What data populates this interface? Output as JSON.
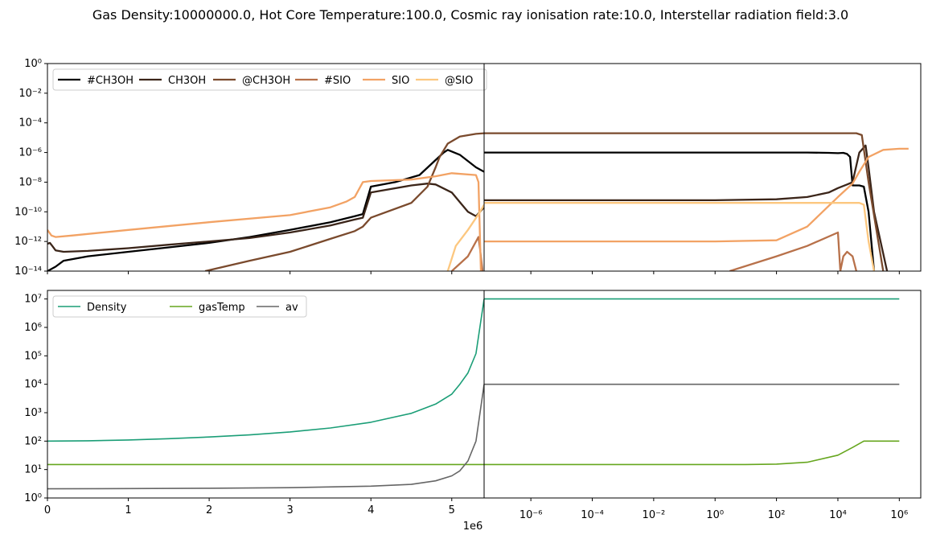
{
  "title": "Gas Density:10000000.0, Hot Core Temperature:100.0, Cosmic ray ionisation rate:10.0, Interstellar radiation field:3.0",
  "chart_data": [
    {
      "type": "line",
      "panel": "top-left",
      "x_scale": "linear",
      "y_scale": "log",
      "xlim": [
        0,
        5400000
      ],
      "ylim": [
        1e-14,
        1
      ],
      "legend": "upper-left",
      "series": [
        {
          "name": "#CH3OH",
          "color": "#000000",
          "x": [
            0,
            100000,
            200000,
            500000,
            1000000,
            1500000,
            2000000,
            2500000,
            3000000,
            3500000,
            3800000,
            3900000,
            4000000,
            4300000,
            4600000,
            4900000,
            4950000,
            5100000,
            5300000,
            5400000
          ],
          "y": [
            1e-14,
            2e-14,
            5e-14,
            1e-13,
            2e-13,
            4e-13,
            8e-13,
            2e-12,
            6e-12,
            2e-11,
            5e-11,
            7e-11,
            5e-09,
            1e-08,
            3e-08,
            1e-06,
            1.5e-06,
            7e-07,
            1e-07,
            5e-08
          ]
        },
        {
          "name": "CH3OH",
          "color": "#3b2519",
          "x": [
            0,
            30000,
            60000,
            100000,
            200000,
            500000,
            1000000,
            1500000,
            2000000,
            2500000,
            3000000,
            3500000,
            3800000,
            3900000,
            4000000,
            4500000,
            4700000,
            4800000,
            5000000,
            5200000,
            5300000,
            5400000
          ],
          "y": [
            7e-13,
            8e-13,
            5e-13,
            2.5e-13,
            2e-13,
            2.3e-13,
            3.5e-13,
            6e-13,
            1e-12,
            1.7e-12,
            4e-12,
            1.2e-11,
            3e-11,
            4e-11,
            2e-09,
            6e-09,
            8e-09,
            7e-09,
            2e-09,
            1e-10,
            5e-11,
            2e-10
          ]
        },
        {
          "name": "@CH3OH",
          "color": "#7a4a2d",
          "x": [
            1950000,
            2500000,
            3000000,
            3500000,
            3800000,
            3900000,
            4000000,
            4500000,
            4700000,
            4800000,
            4850000,
            4950000,
            5100000,
            5300000,
            5400000
          ],
          "y": [
            1e-14,
            5e-14,
            2e-13,
            1.5e-12,
            5e-12,
            1e-11,
            4e-11,
            4e-10,
            5e-09,
            1e-07,
            5e-07,
            4e-06,
            1.2e-05,
            1.8e-05,
            2e-05
          ]
        },
        {
          "name": "#SIO",
          "color": "#b8714a",
          "x": [
            5000000,
            5200000,
            5330000,
            5350000,
            5380000
          ],
          "y": [
            1e-14,
            1e-13,
            2e-12,
            3e-13,
            1e-14
          ]
        },
        {
          "name": "SIO",
          "color": "#f2a264",
          "x": [
            0,
            50000,
            100000,
            300000,
            1000000,
            2000000,
            3000000,
            3500000,
            3700000,
            3800000,
            3900000,
            4000000,
            4500000,
            4800000,
            5000000,
            5300000,
            5330000,
            5360000
          ],
          "y": [
            6e-12,
            2.5e-12,
            2e-12,
            2.5e-12,
            6e-12,
            2e-11,
            6e-11,
            2e-10,
            5e-10,
            1e-09,
            1e-08,
            1.2e-08,
            1.5e-08,
            2.5e-08,
            4e-08,
            3e-08,
            1e-08,
            1e-14
          ]
        },
        {
          "name": "@SIO",
          "color": "#fcc77f",
          "x": [
            4950000,
            5050000,
            5200000,
            5350000,
            5400000
          ],
          "y": [
            1e-14,
            5e-13,
            6e-12,
            1e-10,
            3e-10
          ]
        }
      ]
    },
    {
      "type": "line",
      "panel": "top-right",
      "x_scale": "log",
      "y_scale": "log",
      "xlim": [
        3e-08,
        5000000
      ],
      "ylim": [
        1e-14,
        1
      ],
      "series": [
        {
          "name": "#CH3OH",
          "color": "#000000",
          "x": [
            3e-08,
            1,
            1000,
            5000,
            10000,
            15000,
            20000,
            25000,
            30000,
            50000,
            70000,
            100000,
            150000
          ],
          "y": [
            1e-06,
            1e-06,
            1e-06,
            9.5e-07,
            9e-07,
            9.5e-07,
            8e-07,
            5e-07,
            6e-09,
            6e-09,
            5e-09,
            1e-10,
            1e-14
          ]
        },
        {
          "name": "CH3OH",
          "color": "#3b2519",
          "x": [
            3e-08,
            1,
            100,
            1000,
            5000,
            10000,
            20000,
            30000,
            50000,
            80000,
            100000,
            150000,
            400000
          ],
          "y": [
            6e-10,
            6e-10,
            7e-10,
            1e-09,
            2e-09,
            4e-09,
            7e-09,
            1e-08,
            1e-06,
            3e-06,
            1e-07,
            1e-10,
            1e-14
          ]
        },
        {
          "name": "@CH3OH",
          "color": "#7a4a2d",
          "x": [
            3e-08,
            1,
            1000,
            10000,
            40000,
            60000,
            100000,
            300000
          ],
          "y": [
            2e-05,
            2e-05,
            2e-05,
            2e-05,
            2e-05,
            1.5e-05,
            1e-08,
            1e-14
          ]
        },
        {
          "name": "#SIO",
          "color": "#b8714a",
          "x": [
            3,
            100,
            1000,
            10000,
            12000,
            15000,
            20000,
            30000,
            40000
          ],
          "y": [
            1e-14,
            1e-13,
            5e-13,
            4e-12,
            1e-14,
            1e-13,
            2e-13,
            1e-13,
            1e-14
          ]
        },
        {
          "name": "SIO",
          "color": "#f2a264",
          "x": [
            3e-08,
            1,
            100,
            1000,
            10000,
            30000,
            50000,
            100000,
            300000,
            1000000,
            2000000
          ],
          "y": [
            1e-12,
            1e-12,
            1.2e-12,
            1e-11,
            1e-09,
            8e-09,
            5e-08,
            5e-07,
            1.5e-06,
            1.8e-06,
            1.8e-06
          ]
        },
        {
          "name": "@SIO",
          "color": "#fcc77f",
          "x": [
            3e-08,
            1,
            100,
            10000,
            50000,
            70000,
            100000,
            150000
          ],
          "y": [
            4e-10,
            4e-10,
            4e-10,
            4e-10,
            4e-10,
            3e-10,
            1e-12,
            1e-14
          ]
        }
      ]
    },
    {
      "type": "line",
      "panel": "bottom-left",
      "x_scale": "linear",
      "y_scale": "log",
      "xlim": [
        0,
        5400000
      ],
      "ylim": [
        1,
        20000000
      ],
      "x_ticks": [
        "0",
        "1",
        "2",
        "3",
        "4",
        "5"
      ],
      "x_offset_text": "1e6",
      "legend": "upper-left",
      "series": [
        {
          "name": "Density",
          "color": "#1b9e77",
          "x": [
            0,
            500000,
            1000000,
            1500000,
            2000000,
            2500000,
            3000000,
            3500000,
            4000000,
            4500000,
            4800000,
            5000000,
            5100000,
            5200000,
            5300000,
            5400000
          ],
          "y": [
            100,
            103,
            110,
            122,
            140,
            165,
            210,
            290,
            460,
            950,
            2000,
            4500,
            10000,
            25000,
            120000,
            10000000
          ]
        },
        {
          "name": "gasTemp",
          "color": "#66a61e",
          "x": [
            0,
            5400000
          ],
          "y": [
            15,
            15
          ]
        },
        {
          "name": "av",
          "color": "#666666",
          "x": [
            0,
            1000000,
            2000000,
            3000000,
            4000000,
            4500000,
            4800000,
            5000000,
            5100000,
            5200000,
            5300000,
            5400000
          ],
          "y": [
            2.1,
            2.15,
            2.2,
            2.3,
            2.6,
            3,
            4,
            6,
            9,
            20,
            100,
            10000
          ]
        }
      ]
    },
    {
      "type": "line",
      "panel": "bottom-right",
      "x_scale": "log",
      "y_scale": "log",
      "xlim": [
        3e-08,
        5000000
      ],
      "ylim": [
        1,
        20000000
      ],
      "x_ticks": [
        "10⁻⁶",
        "10⁻⁴",
        "10⁻²",
        "10⁰",
        "10²",
        "10⁴",
        "10⁶"
      ],
      "series": [
        {
          "name": "Density",
          "color": "#1b9e77",
          "x": [
            3e-08,
            1000000
          ],
          "y": [
            10000000,
            10000000
          ]
        },
        {
          "name": "gasTemp",
          "color": "#66a61e",
          "x": [
            3e-08,
            10,
            100,
            1000,
            10000,
            30000,
            70000,
            100000,
            1000000
          ],
          "y": [
            15,
            15,
            15.5,
            18,
            32,
            60,
            100,
            100,
            100
          ]
        },
        {
          "name": "av",
          "color": "#666666",
          "x": [
            3e-08,
            1000000
          ],
          "y": [
            10000,
            10000
          ]
        }
      ]
    }
  ],
  "left_y_ticks_top": [
    "10⁰",
    "10⁻²",
    "10⁻⁴",
    "10⁻⁶",
    "10⁻⁸",
    "10⁻¹⁰",
    "10⁻¹²",
    "10⁻¹⁴"
  ],
  "left_y_ticks_bottom": [
    "10⁷",
    "10⁶",
    "10⁵",
    "10⁴",
    "10³",
    "10²",
    "10¹",
    "10⁰"
  ]
}
